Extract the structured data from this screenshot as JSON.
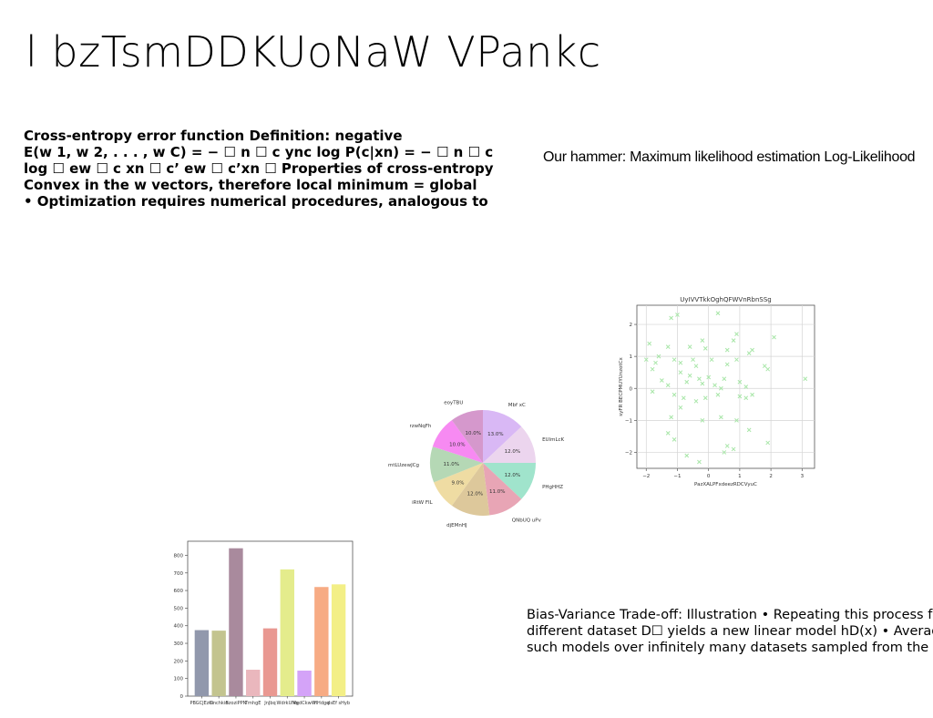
{
  "slide": {
    "title": "l bzTsmDDKUoNaW VPankc",
    "bold_lines": [
      "Cross-entropy error function Definition: negative",
      "E(w 1, w 2, . . . , w C) = − ☐ n ☐ c ync log P(c|xn) = − ☐ n ☐ c",
      "log ☐ ew ☐ c xn ☐ c’ ew ☐ c’xn ☐ Properties of cross-entropy",
      "Convex in the w vectors, therefore local minimum = global",
      "• Optimization requires numerical procedures, analogous to"
    ],
    "hammer_text": "Our hammer: Maximum likelihood estimation Log-Likelihood",
    "bias_lines": [
      "Bias-Variance Trade-off: Illustration • Repeating this process for",
      "different dataset D☐ yields a new linear model hD(x) • Average",
      "such models over infinitely many datasets sampled from the"
    ]
  },
  "chart_data": [
    {
      "type": "pie",
      "labels": [
        "Mbf  xC",
        "EUlmLcK",
        "PHgHHZ",
        "QNbUQ uPv",
        "djEMnHJ",
        "iRtW FIL",
        "mtLUzewJCg",
        "rzwNqFh",
        "eoyTBU"
      ],
      "values": [
        13.0,
        12.0,
        12.0,
        11.0,
        12.0,
        9.0,
        11.0,
        10.0,
        10.0
      ],
      "pct_labels": [
        "13.0%",
        "12.0%",
        "12.0%",
        "11.0%",
        "12.0%",
        "9.0%",
        "11.0%",
        "10.0%",
        "10.0%"
      ],
      "colors": [
        "#d9b8f5",
        "#ecd5ee",
        "#a0e4cc",
        "#e8a5b5",
        "#ddc89b",
        "#efdca3",
        "#b5d8b5",
        "#f78af2",
        "#d598cc"
      ]
    },
    {
      "type": "scatter",
      "title": "UyIVVTkkOghQFWVnRbnSSg",
      "xlabel": "PazXALPFxdeezRDCVyuC",
      "ylabel": "syFR BECPMUYUnzotCx",
      "xlim": [
        -2.3,
        3.4
      ],
      "ylim": [
        -2.5,
        2.6
      ],
      "xticks": [
        -2,
        -1,
        0,
        1,
        2,
        3
      ],
      "yticks": [
        -2,
        -1,
        0,
        1,
        2
      ],
      "grid": true,
      "marker": "x",
      "color": "#a8e6a8",
      "points": [
        [
          -1.2,
          2.2
        ],
        [
          -1.0,
          2.3
        ],
        [
          0.3,
          2.35
        ],
        [
          -0.2,
          1.5
        ],
        [
          0.8,
          1.5
        ],
        [
          0.9,
          1.7
        ],
        [
          2.1,
          1.6
        ],
        [
          -1.9,
          1.4
        ],
        [
          -1.3,
          1.3
        ],
        [
          -0.6,
          1.3
        ],
        [
          -0.1,
          1.25
        ],
        [
          0.6,
          1.2
        ],
        [
          1.4,
          1.2
        ],
        [
          1.3,
          1.1
        ],
        [
          -2.0,
          0.9
        ],
        [
          -1.6,
          1.0
        ],
        [
          -1.8,
          0.6
        ],
        [
          -1.7,
          0.8
        ],
        [
          -1.1,
          0.9
        ],
        [
          -0.9,
          0.8
        ],
        [
          -0.5,
          0.9
        ],
        [
          0.1,
          0.9
        ],
        [
          0.9,
          0.9
        ],
        [
          0.6,
          0.75
        ],
        [
          -0.4,
          0.7
        ],
        [
          -0.9,
          0.5
        ],
        [
          -0.6,
          0.4
        ],
        [
          -0.3,
          0.3
        ],
        [
          0.0,
          0.35
        ],
        [
          0.5,
          0.3
        ],
        [
          1.8,
          0.7
        ],
        [
          1.9,
          0.6
        ],
        [
          -1.5,
          0.25
        ],
        [
          -1.3,
          0.1
        ],
        [
          -0.7,
          0.2
        ],
        [
          -0.2,
          0.15
        ],
        [
          0.2,
          0.1
        ],
        [
          0.4,
          0.0
        ],
        [
          1.0,
          0.2
        ],
        [
          1.2,
          0.05
        ],
        [
          3.1,
          0.3
        ],
        [
          -1.8,
          -0.1
        ],
        [
          -1.1,
          -0.2
        ],
        [
          -0.8,
          -0.3
        ],
        [
          -0.4,
          -0.4
        ],
        [
          -0.1,
          -0.3
        ],
        [
          0.3,
          -0.2
        ],
        [
          1.0,
          -0.25
        ],
        [
          1.2,
          -0.3
        ],
        [
          1.4,
          -0.2
        ],
        [
          -0.9,
          -0.6
        ],
        [
          -1.2,
          -0.9
        ],
        [
          -0.2,
          -1.0
        ],
        [
          0.4,
          -0.9
        ],
        [
          0.9,
          -1.0
        ],
        [
          -1.3,
          -1.4
        ],
        [
          -1.1,
          -1.6
        ],
        [
          1.3,
          -1.3
        ],
        [
          0.6,
          -1.8
        ],
        [
          0.8,
          -1.9
        ],
        [
          -0.7,
          -2.1
        ],
        [
          0.5,
          -2.0
        ],
        [
          1.9,
          -1.7
        ],
        [
          -0.3,
          -2.3
        ]
      ]
    },
    {
      "type": "bar",
      "categories": [
        "PBGCJEzkt",
        "Gnchkin",
        "BzoziPPN",
        "TmhgE",
        "JnJbq",
        "WdrkUNa",
        "VgdCkwW",
        "HHdgq",
        "dsEf sHyb"
      ],
      "values": [
        375,
        372,
        840,
        150,
        385,
        720,
        145,
        620,
        635
      ],
      "colors": [
        "#9198ac",
        "#c3c48f",
        "#a98a9d",
        "#eab7bd",
        "#e99891",
        "#e4ec8c",
        "#d4a3f8",
        "#f7ab84",
        "#f3ef86"
      ],
      "ylim": [
        0,
        880
      ],
      "yticks": [
        0,
        100,
        200,
        300,
        400,
        500,
        600,
        700,
        800
      ]
    }
  ]
}
